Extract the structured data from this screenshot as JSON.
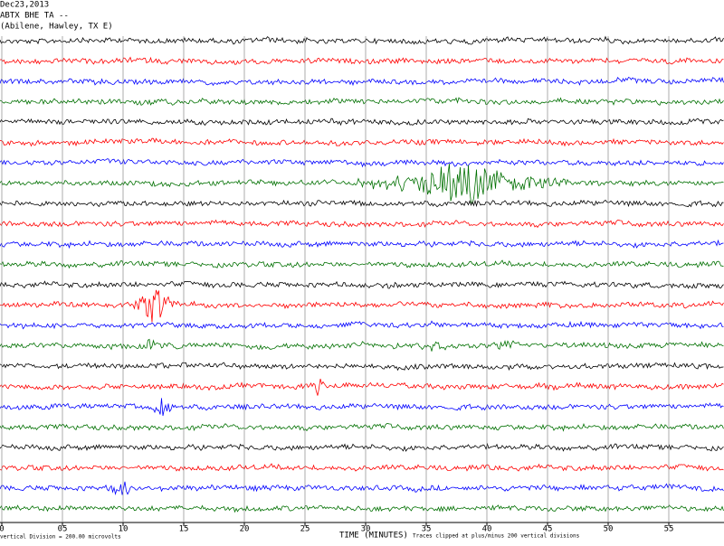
{
  "chart_data": {
    "type": "helicorder",
    "title_lines": [
      "Dec23,2013",
      "ABTX BHE TA --",
      "(Abilene, Hawley, TX E)"
    ],
    "xlabel": "TIME (MINUTES)",
    "scale_note": "vertical Division =  200.00 microvolts",
    "clip_note": "Traces clipped at plus/minus 200 vertical divisions",
    "xlim": [
      0,
      60
    ],
    "xticks": [
      0,
      {
        "value": 5,
        "label": "05"
      },
      10,
      15,
      20,
      25,
      30,
      35,
      40,
      45,
      50,
      55
    ],
    "grid": true,
    "trace_colors": [
      "#000000",
      "#ff0000",
      "#0000ff",
      "#007000"
    ]
  }
}
